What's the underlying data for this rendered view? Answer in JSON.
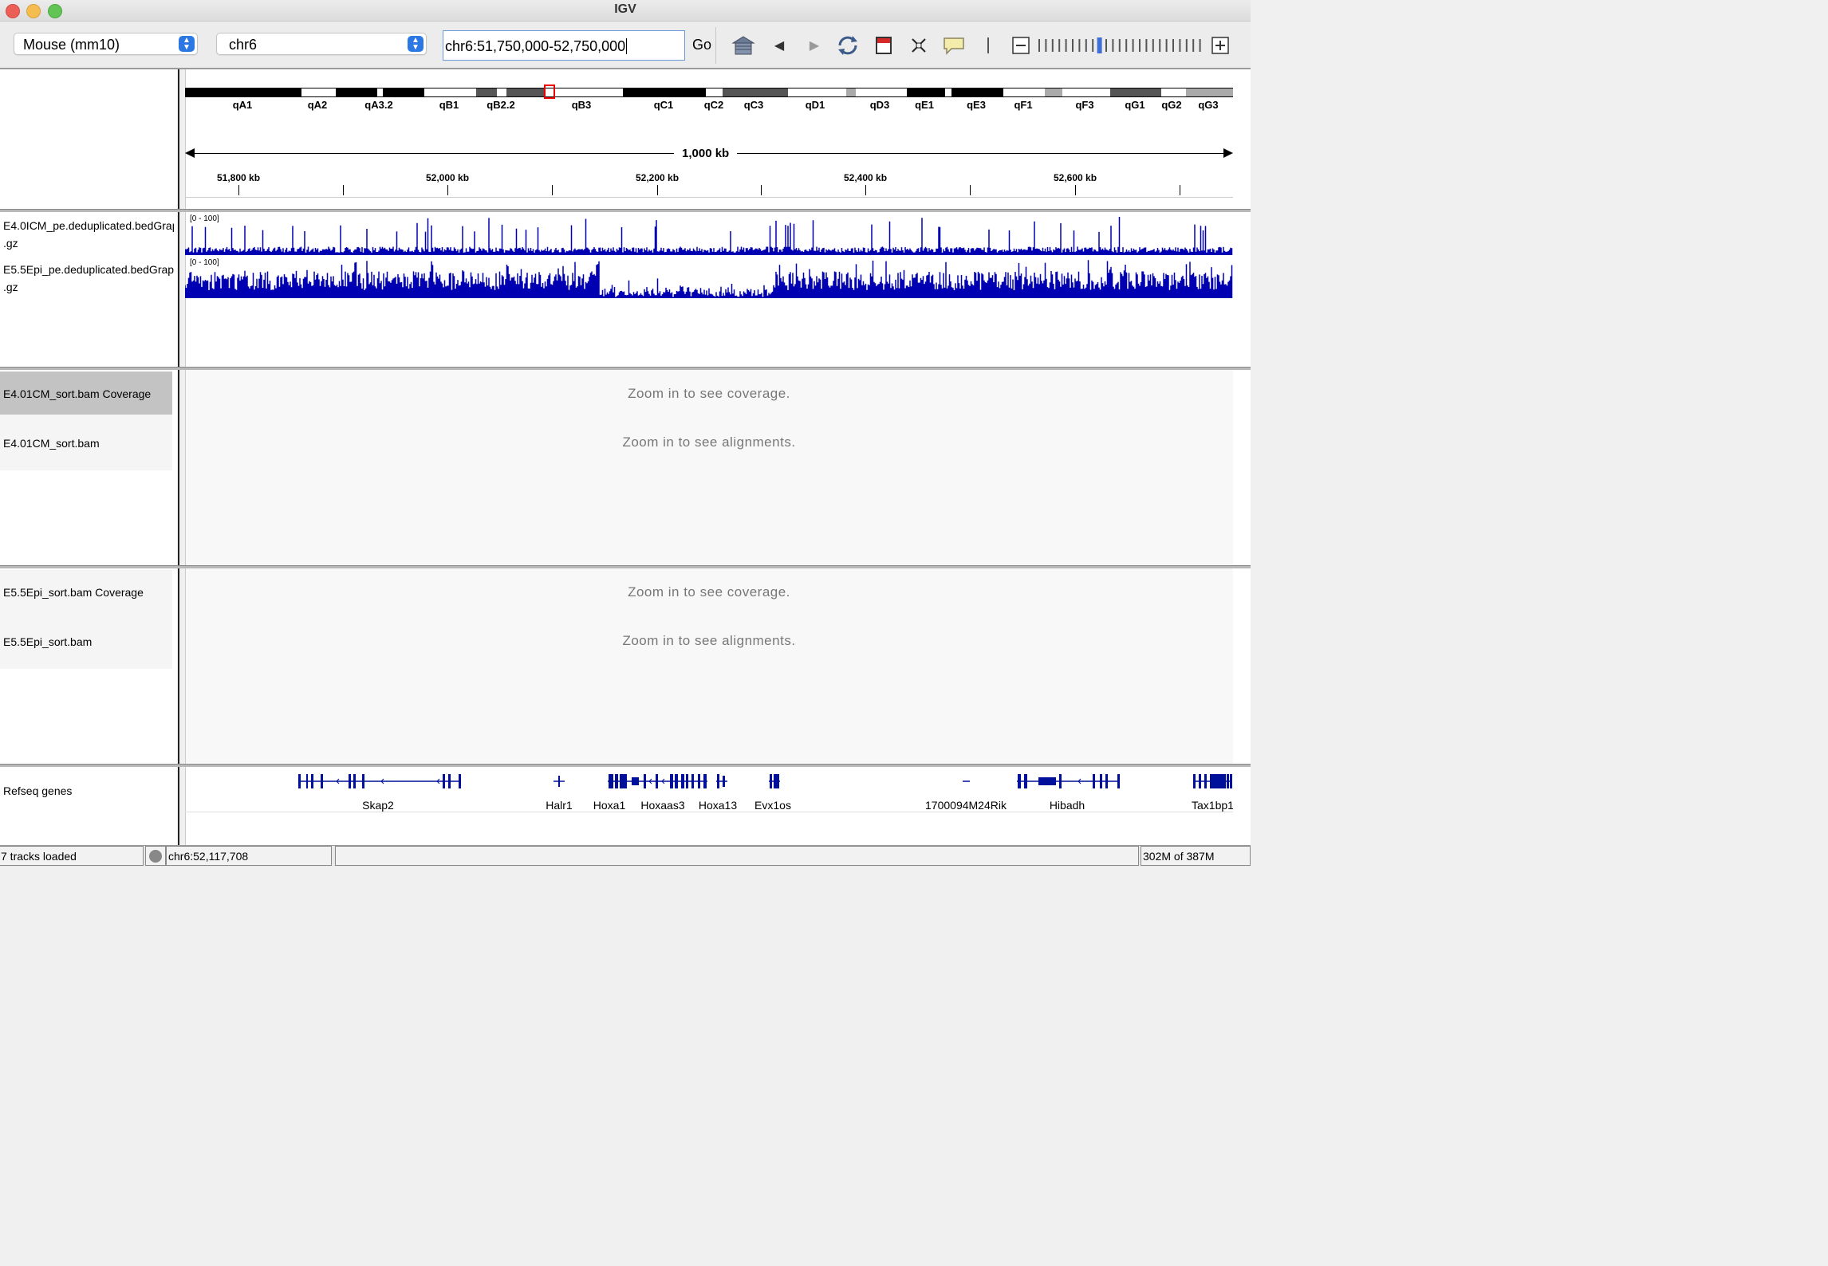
{
  "window": {
    "title": "IGV"
  },
  "toolbar": {
    "genome": "Mouse (mm10)",
    "chromosome": "chr6",
    "locus": "chr6:51,750,000-52,750,000",
    "go_label": "Go"
  },
  "ideogram": {
    "bands": [
      {
        "name": "qA1",
        "stain": "black"
      },
      {
        "name": "qA2",
        "stain": "white"
      },
      {
        "name": "qA3.1",
        "stain": "black"
      },
      {
        "name": "qA3.2",
        "stain": "white"
      },
      {
        "name": "qA3.3",
        "stain": "black"
      },
      {
        "name": "qB1",
        "stain": "white"
      },
      {
        "name": "qB2.1",
        "stain": "dark"
      },
      {
        "name": "qB2.2",
        "stain": "white"
      },
      {
        "name": "qB2.3",
        "stain": "dark"
      },
      {
        "name": "qB3",
        "stain": "white"
      },
      {
        "name": "qC1",
        "stain": "black"
      },
      {
        "name": "qC2",
        "stain": "white"
      },
      {
        "name": "qC3",
        "stain": "dark"
      },
      {
        "name": "qD1",
        "stain": "white"
      },
      {
        "name": "qD2",
        "stain": "light"
      },
      {
        "name": "qD3",
        "stain": "white"
      },
      {
        "name": "qE1",
        "stain": "black"
      },
      {
        "name": "qE2",
        "stain": "white"
      },
      {
        "name": "qE3",
        "stain": "black"
      },
      {
        "name": "qF1",
        "stain": "white"
      },
      {
        "name": "qF2",
        "stain": "light"
      },
      {
        "name": "qF3",
        "stain": "white"
      },
      {
        "name": "qG1",
        "stain": "dark"
      },
      {
        "name": "qG2",
        "stain": "white"
      },
      {
        "name": "qG3",
        "stain": "light"
      }
    ],
    "labels": [
      "qA1",
      "qA2",
      "qA3.2",
      "qB1",
      "qB2.2",
      "qB3",
      "qC1",
      "qC2",
      "qC3",
      "qD1",
      "qD3",
      "qE1",
      "qE3",
      "qF1",
      "qF3",
      "qG1",
      "qG2",
      "qG3"
    ]
  },
  "ruler": {
    "span_label": "1,000 kb",
    "tick_labels": [
      "51,800 kb",
      "52,000 kb",
      "52,200 kb",
      "52,400 kb",
      "52,600 kb"
    ]
  },
  "tracks": {
    "bedgraph1": {
      "name_line1": "E4.0ICM_pe.deduplicated.bedGraph",
      "name_line2": ".gz",
      "range": "[0 - 100]",
      "color": "#0000b2"
    },
    "bedgraph2": {
      "name_line1": "E5.5Epi_pe.deduplicated.bedGraph",
      "name_line2": ".gz",
      "range": "[0 - 100]",
      "color": "#0000b2"
    },
    "bam1_cov": {
      "name": "E4.01CM_sort.bam Coverage",
      "message": "Zoom in to see coverage."
    },
    "bam1": {
      "name": "E4.01CM_sort.bam",
      "message": "Zoom in to see alignments."
    },
    "bam2_cov": {
      "name": "E5.5Epi_sort.bam Coverage",
      "message": "Zoom in to see coverage."
    },
    "bam2": {
      "name": "E5.5Epi_sort.bam",
      "message": "Zoom in to see alignments."
    },
    "refseq": {
      "name": "Refseq genes",
      "genes": [
        "Skap2",
        "Halr1",
        "Hoxa1",
        "Hoxaas3",
        "Hoxa13",
        "Evx1os",
        "1700094M24Rik",
        "Hibadh",
        "Tax1bp1"
      ]
    }
  },
  "status": {
    "tracks_loaded": "7 tracks loaded",
    "position": "chr6:52,117,708",
    "memory": "302M of 387M"
  }
}
